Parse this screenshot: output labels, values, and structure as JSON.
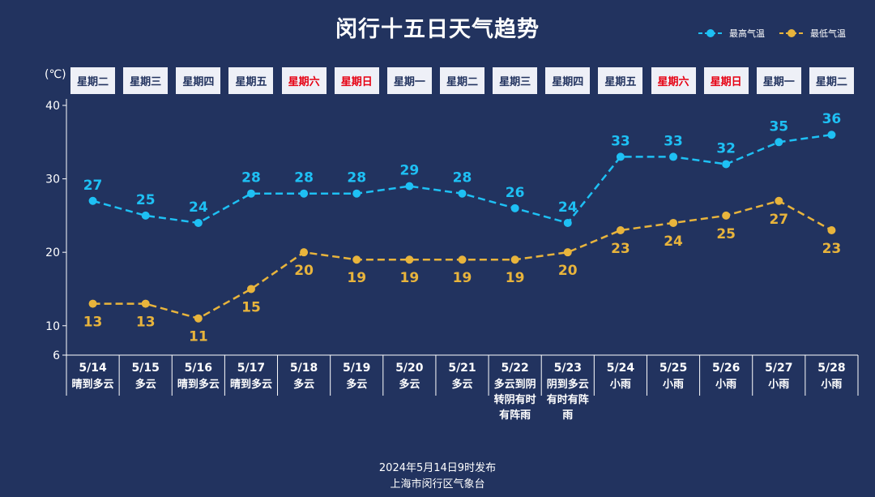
{
  "title": "闵行十五日天气趋势",
  "unit_label": "(℃)",
  "legend": {
    "high": "最高气温",
    "low": "最低气温"
  },
  "weekdays": [
    "星期二",
    "星期三",
    "星期四",
    "星期五",
    "星期六",
    "星期日",
    "星期一",
    "星期二",
    "星期三",
    "星期四",
    "星期五",
    "星期六",
    "星期日",
    "星期一",
    "星期二"
  ],
  "weekend_flags": [
    false,
    false,
    false,
    false,
    true,
    true,
    false,
    false,
    false,
    false,
    false,
    true,
    true,
    false,
    false
  ],
  "colors": {
    "background": "#22335f",
    "high": "#1ec0f4",
    "low": "#e8b43c",
    "weekday_text": "#22335f",
    "weekend_text": "#e60012"
  },
  "chart_data": {
    "type": "line",
    "categories": [
      "5/14",
      "5/15",
      "5/16",
      "5/17",
      "5/18",
      "5/19",
      "5/20",
      "5/21",
      "5/22",
      "5/23",
      "5/24",
      "5/25",
      "5/26",
      "5/27",
      "5/28"
    ],
    "weather": [
      "晴到多云",
      "多云",
      "晴到多云",
      "晴到多云",
      "多云",
      "多云",
      "多云",
      "多云",
      "多云到阴转阴有时有阵雨",
      "阴到多云有时有阵雨",
      "小雨",
      "小雨",
      "小雨",
      "小雨",
      "小雨"
    ],
    "series": [
      {
        "name": "最高气温",
        "values": [
          27,
          25,
          24,
          28,
          28,
          28,
          29,
          28,
          26,
          24,
          33,
          33,
          32,
          35,
          36
        ]
      },
      {
        "name": "最低气温",
        "values": [
          13,
          13,
          11,
          15,
          20,
          19,
          19,
          19,
          19,
          20,
          23,
          24,
          25,
          27,
          23
        ]
      }
    ],
    "y_ticks": [
      6,
      10,
      20,
      30,
      40
    ],
    "ylim": [
      6,
      40
    ],
    "title": "闵行十五日天气趋势",
    "ylabel": "(℃)"
  },
  "footer": {
    "line1": "2024年5月14日9时发布",
    "line2": "上海市闵行区气象台"
  }
}
